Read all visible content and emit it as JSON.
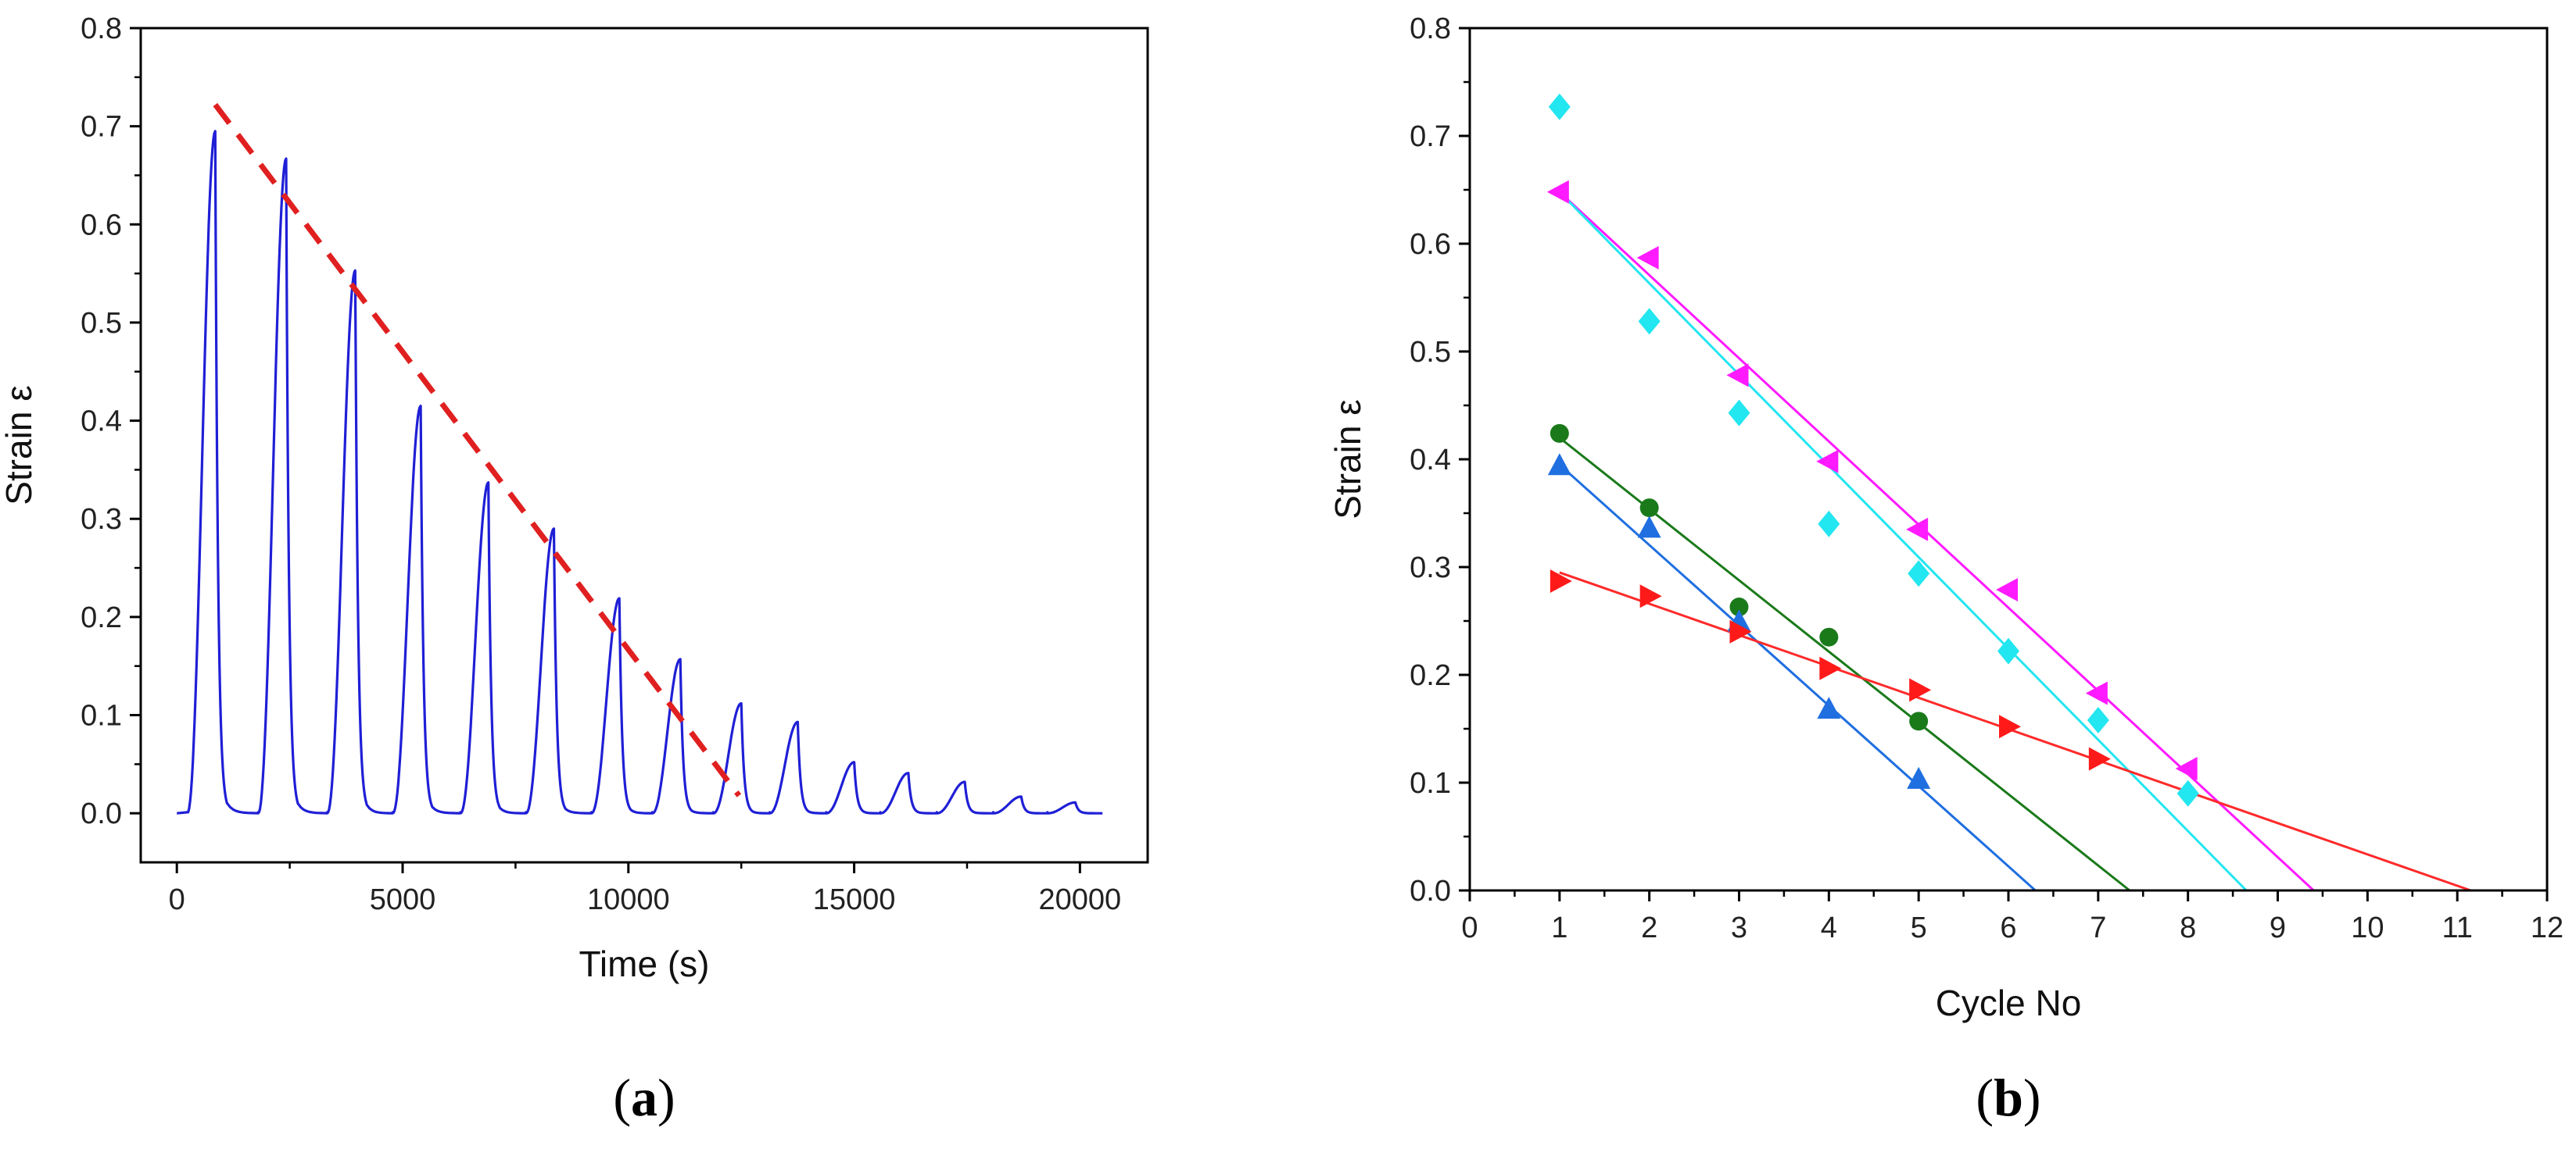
{
  "chart_data": [
    {
      "panel": "a",
      "type": "line",
      "panel_label": "(a)",
      "panel_letter": "a",
      "xlabel": "Time (s)",
      "ylabel": "Strain ε",
      "xlim": [
        -800,
        21500
      ],
      "ylim": [
        -0.05,
        0.8
      ],
      "xticks": [
        0,
        5000,
        10000,
        15000,
        20000
      ],
      "xtick_labels": [
        "0",
        "5000",
        "10000",
        "15000",
        "20000"
      ],
      "yticks": [
        0.0,
        0.1,
        0.2,
        0.3,
        0.4,
        0.5,
        0.6,
        0.7,
        0.8
      ],
      "ytick_labels": [
        "0.0",
        "0.1",
        "0.2",
        "0.3",
        "0.4",
        "0.5",
        "0.6",
        "0.7",
        "0.8"
      ],
      "colors": {
        "signal": "#1f1fd6",
        "trend": "#e02020"
      },
      "series": [
        {
          "name": "strain signal",
          "style": "line",
          "peaks": [
            {
              "x": 850,
              "y": 0.695
            },
            {
              "x": 2420,
              "y": 0.667
            },
            {
              "x": 3950,
              "y": 0.553
            },
            {
              "x": 5400,
              "y": 0.415
            },
            {
              "x": 6900,
              "y": 0.337
            },
            {
              "x": 8350,
              "y": 0.29
            },
            {
              "x": 9800,
              "y": 0.219
            },
            {
              "x": 11150,
              "y": 0.157
            },
            {
              "x": 12500,
              "y": 0.112
            },
            {
              "x": 13750,
              "y": 0.093
            },
            {
              "x": 15000,
              "y": 0.052
            },
            {
              "x": 16200,
              "y": 0.041
            },
            {
              "x": 17450,
              "y": 0.032
            },
            {
              "x": 18700,
              "y": 0.017
            },
            {
              "x": 19900,
              "y": 0.011
            }
          ],
          "x_end": 20500
        },
        {
          "name": "trend",
          "style": "dashed",
          "x": [
            850,
            12450
          ],
          "y": [
            0.722,
            0.018
          ]
        }
      ]
    },
    {
      "panel": "b",
      "type": "scatter",
      "panel_label": "(b)",
      "panel_letter": "b",
      "xlabel": "Cycle No",
      "ylabel": "Strain ε",
      "xlim": [
        0,
        12
      ],
      "ylim": [
        0,
        0.8
      ],
      "xticks": [
        0,
        1,
        2,
        3,
        4,
        5,
        6,
        7,
        8,
        9,
        10,
        11,
        12
      ],
      "xtick_labels": [
        "0",
        "1",
        "2",
        "3",
        "4",
        "5",
        "6",
        "7",
        "8",
        "9",
        "10",
        "11",
        "12"
      ],
      "yticks": [
        0.0,
        0.1,
        0.2,
        0.3,
        0.4,
        0.5,
        0.6,
        0.7,
        0.8
      ],
      "ytick_labels": [
        "0.0",
        "0.1",
        "0.2",
        "0.3",
        "0.4",
        "0.5",
        "0.6",
        "0.7",
        "0.8"
      ],
      "series": [
        {
          "name": "magenta",
          "marker": "triangle-left",
          "color": "#ff1aff",
          "x": [
            1,
            2,
            3,
            4,
            5,
            6,
            7,
            8
          ],
          "y": [
            0.648,
            0.587,
            0.478,
            0.398,
            0.335,
            0.279,
            0.183,
            0.113
          ],
          "fit": {
            "x": [
              1,
              9.4
            ],
            "y": [
              0.648,
              0.0
            ]
          }
        },
        {
          "name": "cyan",
          "marker": "diamond",
          "color": "#22e6f0",
          "x": [
            1,
            2,
            3,
            4,
            5,
            6,
            7,
            8
          ],
          "y": [
            0.727,
            0.528,
            0.443,
            0.34,
            0.294,
            0.222,
            0.158,
            0.09
          ],
          "fit": {
            "x": [
              1,
              8.65
            ],
            "y": [
              0.648,
              0.0
            ]
          }
        },
        {
          "name": "green",
          "marker": "circle",
          "color": "#1a7a1a",
          "x": [
            1,
            2,
            3,
            4,
            5
          ],
          "y": [
            0.424,
            0.355,
            0.263,
            0.235,
            0.157
          ],
          "fit": {
            "x": [
              1,
              7.35
            ],
            "y": [
              0.42,
              0.0
            ]
          }
        },
        {
          "name": "blue",
          "marker": "triangle-up",
          "color": "#1f6fe0",
          "x": [
            1,
            2,
            3,
            4,
            5
          ],
          "y": [
            0.394,
            0.336,
            0.249,
            0.168,
            0.103
          ],
          "fit": {
            "x": [
              1,
              6.3
            ],
            "y": [
              0.395,
              0.0
            ]
          }
        },
        {
          "name": "red",
          "marker": "triangle-right",
          "color": "#ff1a1a",
          "x": [
            1,
            2,
            3,
            4,
            5,
            6,
            7
          ],
          "y": [
            0.287,
            0.273,
            0.24,
            0.206,
            0.186,
            0.152,
            0.122
          ],
          "fit": {
            "x": [
              1,
              11.15
            ],
            "y": [
              0.295,
              0.0
            ]
          },
          "fit_color": "#ff2a2a"
        }
      ]
    }
  ]
}
